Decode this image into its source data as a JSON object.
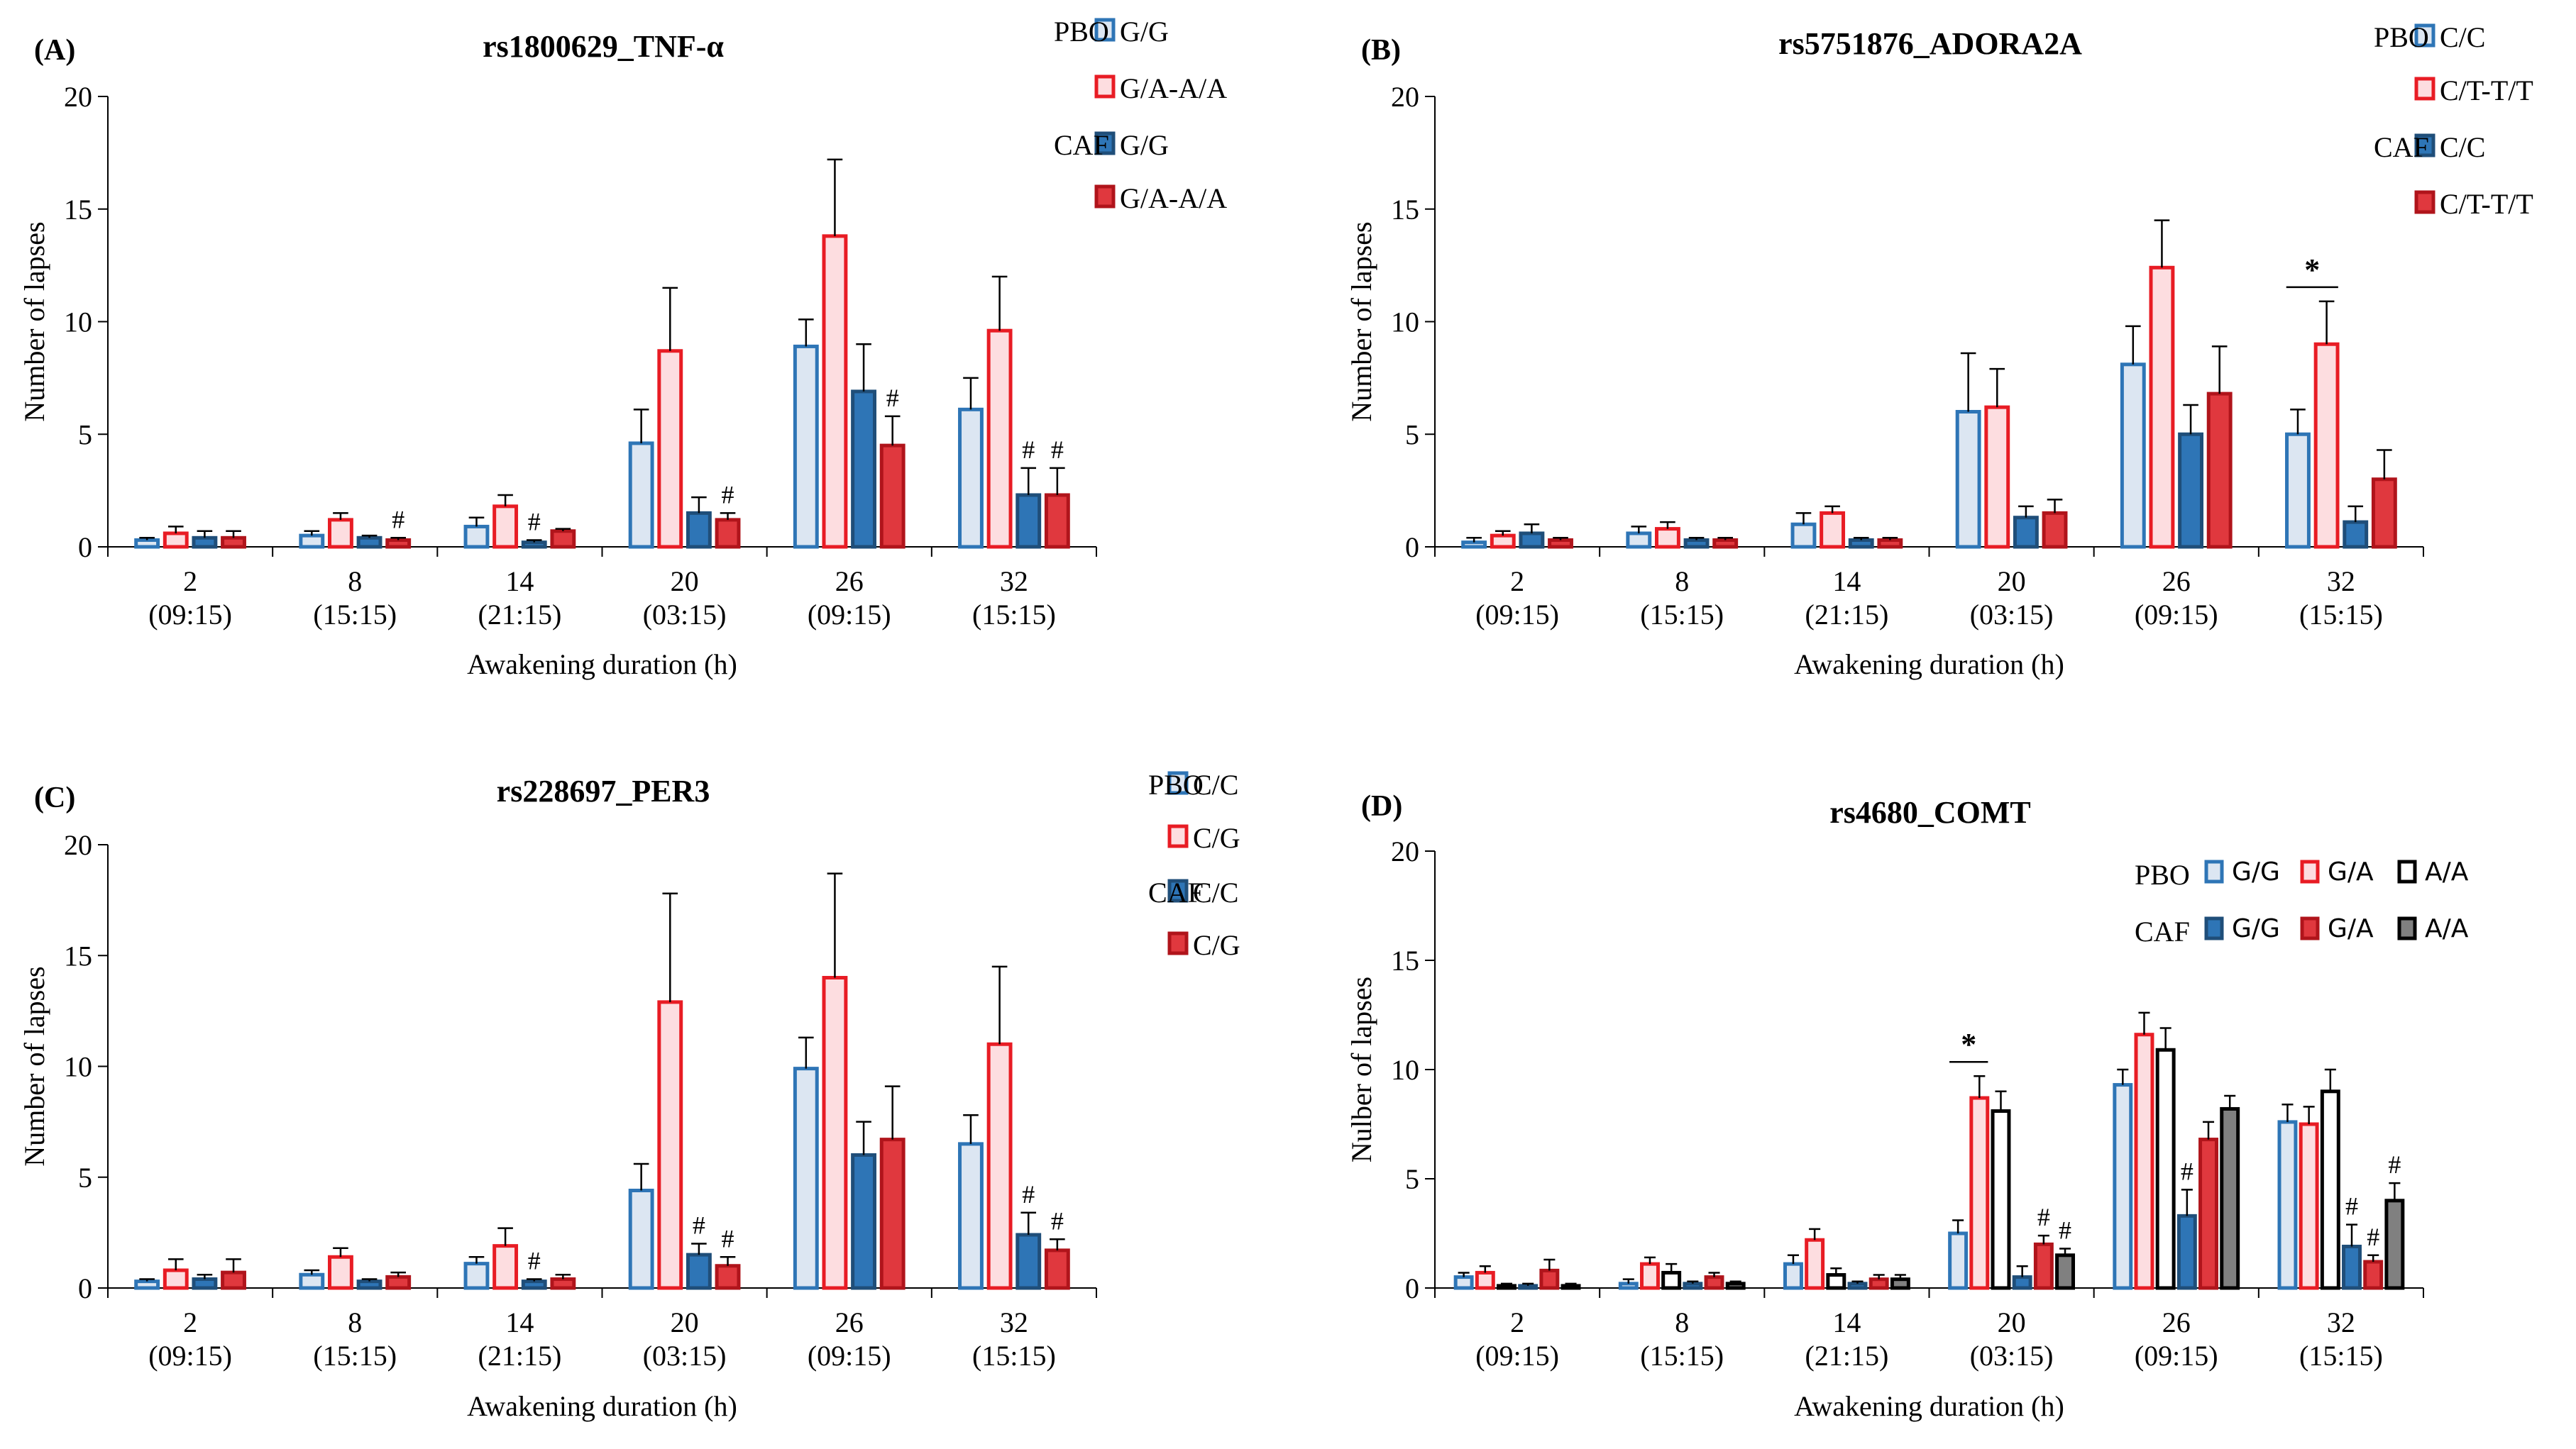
{
  "figure_title": "",
  "colors": {
    "pbo_blue_fill": "#DCE6F2",
    "pbo_blue_stroke": "#2E75B6",
    "pbo_red_fill": "#FDDDE0",
    "pbo_red_stroke": "#E81C24",
    "caf_blue_fill": "#2E75B6",
    "caf_blue_stroke": "#1F4E79",
    "caf_red_fill": "#E0383E",
    "caf_red_stroke": "#B0141B",
    "pbo_gray_fill": "#FFFFFF",
    "pbo_gray_stroke": "#000000",
    "caf_gray_fill": "#808080",
    "caf_gray_stroke": "#000000"
  },
  "chart_data": [
    {
      "type": "bar",
      "panel": "(A)",
      "title": "rs1800629_TNF-α",
      "xlabel": "Awakening duration (h)",
      "ylabel": "Number of lapses",
      "ylim": [
        0,
        20
      ],
      "yticks": [
        "0",
        "5",
        "10",
        "15",
        "20"
      ],
      "categories": [
        "2",
        "8",
        "14",
        "20",
        "26",
        "32"
      ],
      "category_times": [
        "(09:15)",
        "(15:15)",
        "(21:15)",
        "(03:15)",
        "(09:15)",
        "(15:15)"
      ],
      "legend": {
        "group_labels": [
          "PBO",
          "CAF"
        ],
        "genotypes": [
          "G/G",
          "G/A-A/A"
        ]
      },
      "series": [
        {
          "name": "PBO G/G",
          "style": "pbo_blue",
          "values": [
            0.3,
            0.5,
            0.9,
            4.6,
            8.9,
            6.1
          ],
          "errors": [
            0.1,
            0.2,
            0.4,
            1.5,
            1.2,
            1.4
          ],
          "marks": [
            "",
            "",
            "",
            "",
            "",
            ""
          ]
        },
        {
          "name": "PBO G/A-A/A",
          "style": "pbo_red",
          "values": [
            0.6,
            1.2,
            1.8,
            8.7,
            13.8,
            9.6
          ],
          "errors": [
            0.3,
            0.3,
            0.5,
            2.8,
            3.4,
            2.4
          ],
          "marks": [
            "",
            "",
            "",
            "",
            "",
            ""
          ]
        },
        {
          "name": "CAF G/G",
          "style": "caf_blue",
          "values": [
            0.4,
            0.4,
            0.2,
            1.5,
            6.9,
            2.3
          ],
          "errors": [
            0.3,
            0.1,
            0.1,
            0.7,
            2.1,
            1.2
          ],
          "marks": [
            "",
            "",
            "#",
            "",
            "",
            "#"
          ]
        },
        {
          "name": "CAF G/A-A/A",
          "style": "caf_red",
          "values": [
            0.4,
            0.3,
            0.7,
            1.2,
            4.5,
            2.3
          ],
          "errors": [
            0.3,
            0.1,
            0.1,
            0.3,
            1.3,
            1.2
          ],
          "marks": [
            "",
            "#",
            "",
            "#",
            "#",
            "#"
          ]
        }
      ],
      "significance": []
    },
    {
      "type": "bar",
      "panel": "(B)",
      "title": "rs5751876_ADORA2A",
      "xlabel": "Awakening duration (h)",
      "ylabel": "Number of lapses",
      "ylim": [
        0,
        20
      ],
      "yticks": [
        "0",
        "5",
        "10",
        "15",
        "20"
      ],
      "categories": [
        "2",
        "8",
        "14",
        "20",
        "26",
        "32"
      ],
      "category_times": [
        "(09:15)",
        "(15:15)",
        "(21:15)",
        "(03:15)",
        "(09:15)",
        "(15:15)"
      ],
      "legend": {
        "group_labels": [
          "PBO",
          "CAF"
        ],
        "genotypes": [
          "C/C",
          "C/T-T/T"
        ]
      },
      "series": [
        {
          "name": "PBO C/C",
          "style": "pbo_blue",
          "values": [
            0.2,
            0.6,
            1.0,
            6.0,
            8.1,
            5.0
          ],
          "errors": [
            0.2,
            0.3,
            0.5,
            2.6,
            1.7,
            1.1
          ],
          "marks": [
            "",
            "",
            "",
            "",
            "",
            ""
          ]
        },
        {
          "name": "PBO C/T-T/T",
          "style": "pbo_red",
          "values": [
            0.5,
            0.8,
            1.5,
            6.2,
            12.4,
            9.0
          ],
          "errors": [
            0.2,
            0.3,
            0.3,
            1.7,
            2.1,
            1.9
          ],
          "marks": [
            "",
            "",
            "",
            "",
            "",
            ""
          ]
        },
        {
          "name": "CAF C/C",
          "style": "caf_blue",
          "values": [
            0.6,
            0.3,
            0.3,
            1.3,
            5.0,
            1.1
          ],
          "errors": [
            0.4,
            0.1,
            0.1,
            0.5,
            1.3,
            0.7
          ],
          "marks": [
            "",
            "",
            "",
            "",
            "",
            ""
          ]
        },
        {
          "name": "CAF C/T-T/T",
          "style": "caf_red",
          "values": [
            0.3,
            0.3,
            0.3,
            1.5,
            6.8,
            3.0
          ],
          "errors": [
            0.1,
            0.1,
            0.1,
            0.6,
            2.1,
            1.3
          ],
          "marks": [
            "",
            "",
            "",
            "",
            "",
            ""
          ]
        }
      ],
      "significance": [
        {
          "category_index": 5,
          "series_from": 0,
          "series_to": 1,
          "label": "*"
        }
      ]
    },
    {
      "type": "bar",
      "panel": "(C)",
      "title": "rs228697_PER3",
      "xlabel": "Awakening duration (h)",
      "ylabel": "Number of lapses",
      "ylim": [
        0,
        20
      ],
      "yticks": [
        "0",
        "5",
        "10",
        "15",
        "20"
      ],
      "categories": [
        "2",
        "8",
        "14",
        "20",
        "26",
        "32"
      ],
      "category_times": [
        "(09:15)",
        "(15:15)",
        "(21:15)",
        "(03:15)",
        "(09:15)",
        "(15:15)"
      ],
      "legend": {
        "group_labels": [
          "PBO",
          "CAF"
        ],
        "genotypes": [
          "C/C",
          "C/G"
        ]
      },
      "series": [
        {
          "name": "PBO C/C",
          "style": "pbo_blue",
          "values": [
            0.3,
            0.6,
            1.1,
            4.4,
            9.9,
            6.5
          ],
          "errors": [
            0.1,
            0.2,
            0.3,
            1.2,
            1.4,
            1.3
          ],
          "marks": [
            "",
            "",
            "",
            "",
            "",
            ""
          ]
        },
        {
          "name": "PBO C/G",
          "style": "pbo_red",
          "values": [
            0.8,
            1.4,
            1.9,
            12.9,
            14.0,
            11.0
          ],
          "errors": [
            0.5,
            0.4,
            0.8,
            4.9,
            4.7,
            3.5
          ],
          "marks": [
            "",
            "",
            "",
            "",
            "",
            ""
          ]
        },
        {
          "name": "CAF C/C",
          "style": "caf_blue",
          "values": [
            0.4,
            0.3,
            0.3,
            1.5,
            6.0,
            2.4
          ],
          "errors": [
            0.2,
            0.1,
            0.1,
            0.5,
            1.5,
            1.0
          ],
          "marks": [
            "",
            "",
            "#",
            "#",
            "",
            "#"
          ]
        },
        {
          "name": "CAF C/G",
          "style": "caf_red",
          "values": [
            0.7,
            0.5,
            0.4,
            1.0,
            6.7,
            1.7
          ],
          "errors": [
            0.6,
            0.2,
            0.2,
            0.4,
            2.4,
            0.5
          ],
          "marks": [
            "",
            "",
            "",
            "#",
            "",
            "#"
          ]
        }
      ],
      "significance": []
    },
    {
      "type": "bar",
      "panel": "(D)",
      "title": "rs4680_COMT",
      "xlabel": "Awakening duration (h)",
      "ylabel": "Nulber of lapses",
      "ylim": [
        0,
        20
      ],
      "yticks": [
        "0",
        "5",
        "10",
        "15",
        "20"
      ],
      "categories": [
        "2",
        "8",
        "14",
        "20",
        "26",
        "32"
      ],
      "category_times": [
        "(09:15)",
        "(15:15)",
        "(21:15)",
        "(03:15)",
        "(09:15)",
        "(15:15)"
      ],
      "legend": {
        "group_labels": [
          "PBO",
          "CAF"
        ],
        "genotypes": [
          "G/G",
          "G/A",
          "A/A"
        ]
      },
      "series": [
        {
          "name": "PBO G/G",
          "style": "pbo_blue",
          "values": [
            0.5,
            0.2,
            1.1,
            2.5,
            9.3,
            7.6
          ],
          "errors": [
            0.2,
            0.2,
            0.4,
            0.6,
            0.7,
            0.8
          ],
          "marks": [
            "",
            "",
            "",
            "",
            "",
            ""
          ]
        },
        {
          "name": "PBO G/A",
          "style": "pbo_red",
          "values": [
            0.7,
            1.1,
            2.2,
            8.7,
            11.6,
            7.5
          ],
          "errors": [
            0.3,
            0.3,
            0.5,
            1.0,
            1.0,
            0.8
          ],
          "marks": [
            "",
            "",
            "",
            "",
            "",
            ""
          ]
        },
        {
          "name": "PBO A/A",
          "style": "pbo_gray",
          "values": [
            0.1,
            0.7,
            0.6,
            8.1,
            10.9,
            9.0
          ],
          "errors": [
            0.1,
            0.4,
            0.3,
            0.9,
            1.0,
            1.0
          ],
          "marks": [
            "",
            "",
            "",
            "",
            "",
            ""
          ]
        },
        {
          "name": "CAF G/G",
          "style": "caf_blue",
          "values": [
            0.1,
            0.2,
            0.2,
            0.5,
            3.3,
            1.9
          ],
          "errors": [
            0.1,
            0.1,
            0.1,
            0.5,
            1.2,
            1.0
          ],
          "marks": [
            "",
            "",
            "",
            "",
            "#",
            "#"
          ]
        },
        {
          "name": "CAF G/A",
          "style": "caf_red",
          "values": [
            0.8,
            0.5,
            0.4,
            2.0,
            6.8,
            1.2
          ],
          "errors": [
            0.5,
            0.2,
            0.2,
            0.4,
            0.8,
            0.3
          ],
          "marks": [
            "",
            "",
            "",
            "#",
            "",
            "#"
          ]
        },
        {
          "name": "CAF A/A",
          "style": "caf_gray",
          "values": [
            0.1,
            0.2,
            0.4,
            1.5,
            8.2,
            4.0
          ],
          "errors": [
            0.1,
            0.1,
            0.2,
            0.3,
            0.6,
            0.8
          ],
          "marks": [
            "",
            "",
            "",
            "#",
            "",
            "#"
          ]
        }
      ],
      "significance": [
        {
          "category_index": 3,
          "series_from": 0,
          "series_to": 1,
          "label": "*"
        }
      ]
    }
  ]
}
